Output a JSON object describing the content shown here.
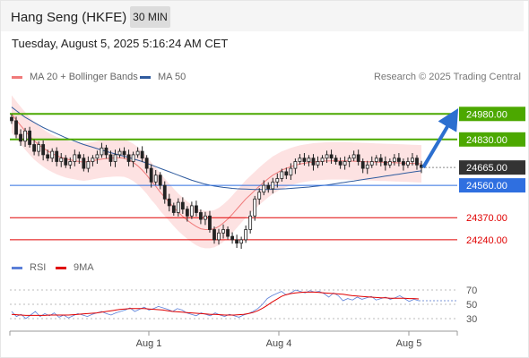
{
  "header": {
    "title": "Hang Seng (HKFE)",
    "timeframe": "30 MIN"
  },
  "timestamp": "Tuesday, August 5, 2025 5:16:24 AM CET",
  "legend": {
    "ma20": {
      "label": "MA 20 + Bollinger Bands",
      "color": "#f07a7a"
    },
    "ma50": {
      "label": "MA 50",
      "color": "#2f5b9e"
    },
    "rsi": {
      "label": "RSI",
      "color": "#5b7fd8"
    },
    "rsi_ma": {
      "label": "9MA",
      "color": "#e00000"
    }
  },
  "credit": "Research © 2025 Trading Central",
  "chart_data": [
    {
      "type": "candlestick",
      "y_range": [
        24150,
        25150
      ],
      "x_ticks": [
        "Aug 1",
        "Aug 4",
        "Aug 5"
      ],
      "levels": [
        {
          "value": 24980,
          "label": "24980.00",
          "kind": "resistance",
          "color": "#4ca800"
        },
        {
          "value": 24830,
          "label": "24830.00",
          "kind": "resistance",
          "color": "#4ca800"
        },
        {
          "value": 24665,
          "label": "24665.00",
          "kind": "last-price",
          "color": "#333333"
        },
        {
          "value": 24560,
          "label": "24560.00",
          "kind": "pivot",
          "color": "#2f6fe0"
        },
        {
          "value": 24370,
          "label": "24370.00",
          "kind": "support",
          "color": "#e00000"
        },
        {
          "value": 24240,
          "label": "24240.00",
          "kind": "support",
          "color": "#e00000"
        }
      ],
      "close": [
        24940,
        24860,
        24820,
        24880,
        24800,
        24760,
        24800,
        24740,
        24720,
        24760,
        24700,
        24720,
        24680,
        24700,
        24740,
        24720,
        24660,
        24700,
        24720,
        24740,
        24780,
        24740,
        24700,
        24740,
        24760,
        24740,
        24700,
        24740,
        24760,
        24720,
        24660,
        24580,
        24620,
        24560,
        24480,
        24440,
        24400,
        24460,
        24420,
        24380,
        24440,
        24400,
        24360,
        24380,
        24300,
        24240,
        24280,
        24300,
        24260,
        24240,
        24220,
        24240,
        24300,
        24380,
        24480,
        24520,
        24560,
        24540,
        24580,
        24600,
        24640,
        24620,
        24660,
        24700,
        24720,
        24700,
        24720,
        24680,
        24700,
        24720,
        24740,
        24720,
        24700,
        24680,
        24700,
        24720,
        24740,
        24700,
        24660,
        24680,
        24700,
        24720,
        24700,
        24680,
        24700,
        24720,
        24700,
        24680,
        24700,
        24720,
        24680,
        24665
      ],
      "ma20": [
        24980,
        24945,
        24912,
        24880,
        24850,
        24822,
        24800,
        24780,
        24762,
        24748,
        24735,
        24725,
        24716,
        24710,
        24705,
        24700,
        24697,
        24700,
        24705,
        24710,
        24715,
        24718,
        24720,
        24722,
        24722,
        24720,
        24710,
        24695,
        24675,
        24650,
        24620,
        24585,
        24555,
        24520,
        24490,
        24460,
        24430,
        24402,
        24378,
        24355,
        24335,
        24318,
        24305,
        24300,
        24300,
        24305,
        24318,
        24338,
        24362,
        24390,
        24420,
        24450,
        24480,
        24505,
        24530,
        24555,
        24578,
        24600,
        24620,
        24635,
        24650,
        24660,
        24670,
        24678,
        24685,
        24690,
        24694,
        24698,
        24700,
        24702,
        24703,
        24704,
        24704,
        24704,
        24704,
        24703,
        24702,
        24701,
        24700,
        24699,
        24698,
        24697,
        24696,
        24695,
        24694,
        24693,
        24692,
        24691,
        24690,
        24689,
        24688,
        24687
      ],
      "ma50": [
        25020,
        25000,
        24980,
        24960,
        24945,
        24930,
        24915,
        24900,
        24888,
        24876,
        24864,
        24852,
        24840,
        24830,
        24820,
        24810,
        24800,
        24792,
        24784,
        24776,
        24768,
        24760,
        24752,
        24745,
        24738,
        24731,
        24724,
        24716,
        24708,
        24700,
        24690,
        24680,
        24670,
        24660,
        24650,
        24640,
        24630,
        24620,
        24610,
        24600,
        24590,
        24582,
        24574,
        24567,
        24561,
        24556,
        24552,
        24548,
        24545,
        24542,
        24540,
        24539,
        24538,
        24537,
        24536,
        24536,
        24536,
        24536,
        24537,
        24538,
        24539,
        24540,
        24542,
        24544,
        24546,
        24548,
        24550,
        24553,
        24556,
        24559,
        24562,
        24566,
        24570,
        24574,
        24578,
        24582,
        24586,
        24590,
        24594,
        24598,
        24602,
        24606,
        24610,
        24614,
        24618,
        24622,
        24626,
        24630,
        24634,
        24638,
        24642,
        24645
      ],
      "projection": {
        "from": 24665,
        "to": 24980
      }
    },
    {
      "type": "line",
      "y_ticks": [
        70,
        50,
        30
      ],
      "y_range": [
        15,
        85
      ],
      "series": [
        {
          "name": "RSI",
          "values": [
            40,
            33,
            36,
            30,
            35,
            40,
            33,
            37,
            34,
            38,
            32,
            35,
            31,
            34,
            37,
            35,
            33,
            36,
            38,
            40,
            37,
            35,
            38,
            40,
            42,
            45,
            40,
            43,
            46,
            42,
            44,
            47,
            45,
            43,
            40,
            44,
            42,
            38,
            36,
            34,
            38,
            36,
            34,
            38,
            35,
            33,
            36,
            34,
            32,
            35,
            37,
            40,
            44,
            50,
            58,
            62,
            65,
            68,
            63,
            66,
            70,
            68,
            66,
            69,
            67,
            68,
            65,
            60,
            66,
            62,
            55,
            58,
            56,
            60,
            57,
            59,
            61,
            56,
            58,
            60,
            57,
            59,
            62,
            58,
            54,
            57,
            55
          ]
        },
        {
          "name": "9MA",
          "values": [
            36,
            35.5,
            35,
            34.5,
            34.5,
            34.5,
            34.5,
            34.5,
            35,
            35,
            35,
            35,
            35,
            35.5,
            36,
            36.5,
            37,
            37.5,
            38,
            39,
            40,
            41,
            42,
            43,
            43.5,
            44,
            44,
            44,
            44,
            43.5,
            43,
            42.5,
            42,
            41,
            40,
            39.5,
            39,
            38.5,
            38,
            37.5,
            37,
            36.5,
            36,
            36,
            35.5,
            35,
            35,
            35,
            35.5,
            36,
            37,
            38.5,
            41,
            44.5,
            48.5,
            53,
            57,
            61,
            63.5,
            65,
            66,
            66.5,
            67,
            67,
            67,
            66.5,
            66,
            65.5,
            65,
            64.5,
            64,
            63,
            62,
            61.5,
            61,
            60.5,
            60,
            59.5,
            59,
            59,
            58.5,
            58.5,
            58.5,
            58.5,
            58,
            58,
            57.5
          ]
        }
      ]
    }
  ]
}
